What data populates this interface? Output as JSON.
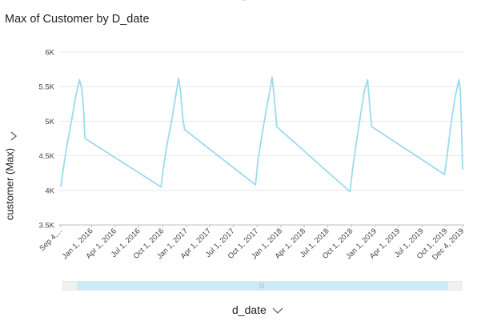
{
  "title": "Max of Customer by D_date",
  "chart_data": {
    "type": "line",
    "title": "Max of Customer by D_date",
    "xlabel": "d_date",
    "ylabel": "customer (Max)",
    "ylim": [
      3500,
      6000
    ],
    "y_ticks": [
      "3.5K",
      "4K",
      "4.5K",
      "5K",
      "5.5K",
      "6K"
    ],
    "y_tick_values": [
      3500,
      4000,
      4500,
      5000,
      5500,
      6000
    ],
    "x_ticks": [
      "Sep 4,...",
      "Jan 1, 2016",
      "Apr 1, 2016",
      "Jul 1, 2016",
      "Oct 1, 2016",
      "Jan 1, 2017",
      "Apr 1, 2017",
      "Jul 1, 2017",
      "Oct 1, 2017",
      "Jan 1, 2018",
      "Apr 1, 2018",
      "Jul 1, 2018",
      "Oct 1, 2018",
      "Jan 1, 2019",
      "Apr 1, 2019",
      "Jul 1, 2019",
      "Oct 1, 2019",
      "Dec 4, 2019"
    ],
    "x_tick_dates": [
      "2015-09-04",
      "2016-01-01",
      "2016-04-01",
      "2016-07-01",
      "2016-10-01",
      "2017-01-01",
      "2017-04-01",
      "2017-07-01",
      "2017-10-01",
      "2018-01-01",
      "2018-04-01",
      "2018-07-01",
      "2018-10-01",
      "2019-01-01",
      "2019-04-01",
      "2019-07-01",
      "2019-10-01",
      "2019-12-04"
    ],
    "grid": true,
    "series": [
      {
        "color": "#9adcec",
        "points": [
          [
            "2015-09-04",
            4050
          ],
          [
            "2015-09-15",
            4350
          ],
          [
            "2015-09-30",
            4700
          ],
          [
            "2015-10-15",
            5000
          ],
          [
            "2015-10-31",
            5350
          ],
          [
            "2015-11-15",
            5600
          ],
          [
            "2015-11-25",
            5450
          ],
          [
            "2015-12-02",
            5100
          ],
          [
            "2015-12-05",
            4800
          ],
          [
            "2015-12-07",
            4750
          ],
          [
            "2016-09-25",
            4050
          ],
          [
            "2016-10-05",
            4350
          ],
          [
            "2016-10-20",
            4700
          ],
          [
            "2016-11-05",
            5000
          ],
          [
            "2016-11-20",
            5350
          ],
          [
            "2016-12-02",
            5620
          ],
          [
            "2016-12-10",
            5400
          ],
          [
            "2016-12-18",
            5050
          ],
          [
            "2016-12-25",
            4880
          ],
          [
            "2017-09-25",
            4080
          ],
          [
            "2017-10-05",
            4450
          ],
          [
            "2017-10-20",
            4800
          ],
          [
            "2017-11-05",
            5150
          ],
          [
            "2017-11-20",
            5450
          ],
          [
            "2017-11-28",
            5640
          ],
          [
            "2017-12-05",
            5400
          ],
          [
            "2017-12-12",
            5100
          ],
          [
            "2017-12-16",
            4920
          ],
          [
            "2018-09-25",
            3980
          ],
          [
            "2018-10-05",
            4300
          ],
          [
            "2018-10-20",
            4700
          ],
          [
            "2018-11-05",
            5100
          ],
          [
            "2018-11-20",
            5450
          ],
          [
            "2018-12-02",
            5600
          ],
          [
            "2018-12-08",
            5350
          ],
          [
            "2018-12-14",
            5050
          ],
          [
            "2018-12-18",
            4920
          ],
          [
            "2019-09-25",
            4230
          ],
          [
            "2019-10-05",
            4500
          ],
          [
            "2019-10-20",
            4950
          ],
          [
            "2019-11-05",
            5350
          ],
          [
            "2019-11-20",
            5600
          ],
          [
            "2019-11-25",
            5450
          ],
          [
            "2019-11-30",
            4900
          ],
          [
            "2019-12-04",
            4300
          ]
        ]
      }
    ]
  }
}
